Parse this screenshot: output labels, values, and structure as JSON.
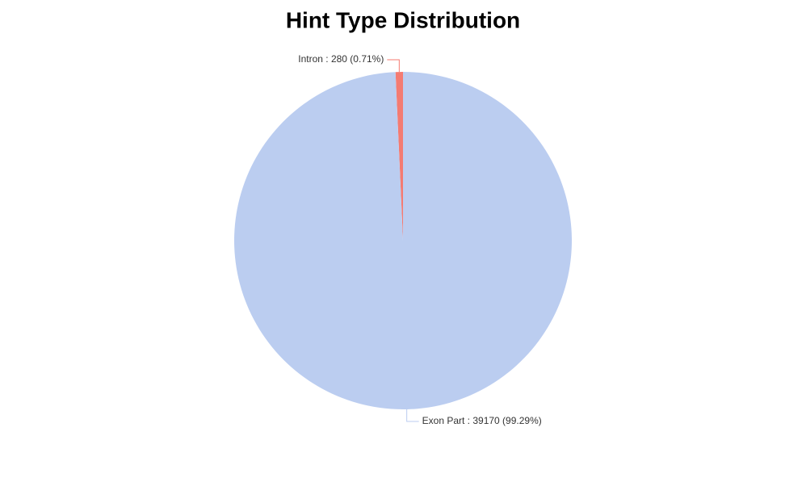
{
  "chart_data": {
    "type": "pie",
    "title": "Hint Type Distribution",
    "values": [
      280,
      39170
    ],
    "value_labels": [
      "Intron : 280 (0.71%)",
      "Exon Part : 39170 (99.29%)"
    ],
    "colors": [
      "#f47b72",
      "#bbcdf0"
    ]
  }
}
